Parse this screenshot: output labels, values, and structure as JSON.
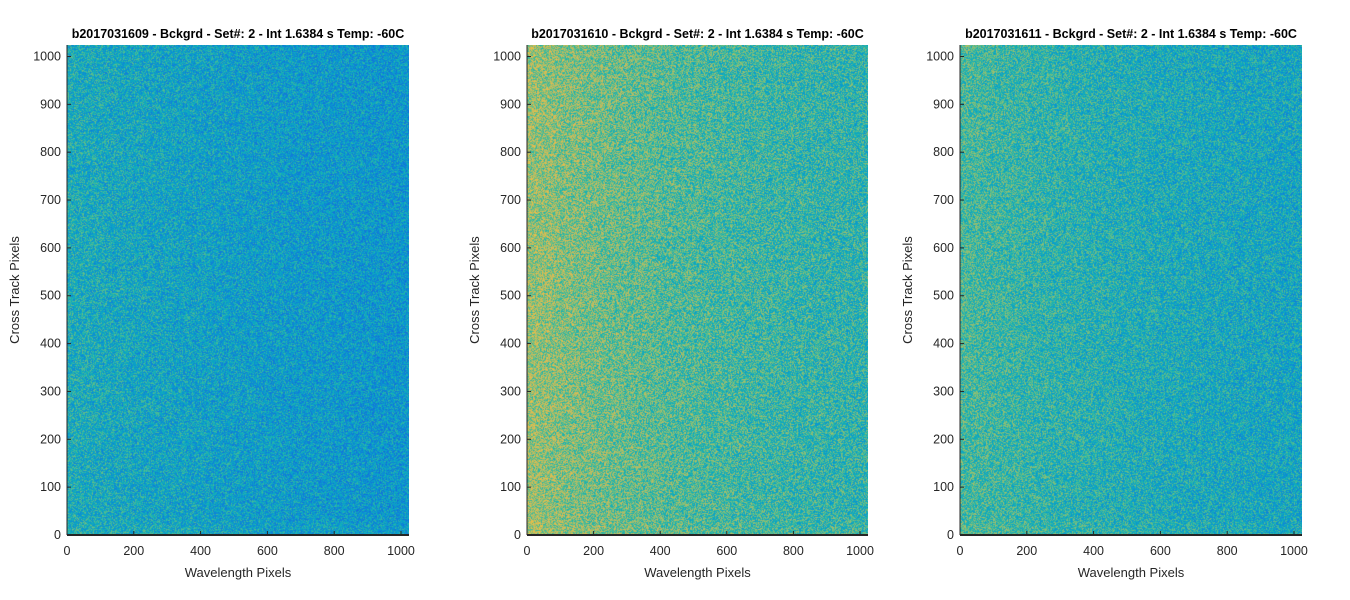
{
  "chart_data": [
    {
      "type": "heatmap",
      "title": "b2017031609 - Bckgrd - Set#: 2 - Int 1.6384 s Temp: -60C",
      "xlabel": "Wavelength Pixels",
      "ylabel": "Cross Track Pixels",
      "xlim": [
        0,
        1024
      ],
      "ylim": [
        0,
        1024
      ],
      "xticks": [
        0,
        200,
        400,
        600,
        800,
        1000
      ],
      "yticks": [
        0,
        100,
        200,
        300,
        400,
        500,
        600,
        700,
        800,
        900,
        1000
      ],
      "colormap": "parula",
      "noise": {
        "base": 0.42,
        "left_gradient": 0.06,
        "amplitude": 0.16
      },
      "grid": false
    },
    {
      "type": "heatmap",
      "title": "b2017031610 - Bckgrd - Set#: 2 - Int 1.6384 s Temp: -60C",
      "xlabel": "Wavelength Pixels",
      "ylabel": "Cross Track Pixels",
      "xlim": [
        0,
        1024
      ],
      "ylim": [
        0,
        1024
      ],
      "xticks": [
        0,
        200,
        400,
        600,
        800,
        1000
      ],
      "yticks": [
        0,
        100,
        200,
        300,
        400,
        500,
        600,
        700,
        800,
        900,
        1000
      ],
      "colormap": "parula",
      "noise": {
        "base": 0.55,
        "left_gradient": 0.14,
        "amplitude": 0.17
      },
      "grid": false
    },
    {
      "type": "heatmap",
      "title": "b2017031611 - Bckgrd - Set#: 2 - Int 1.6384 s Temp: -60C",
      "xlabel": "Wavelength Pixels",
      "ylabel": "Cross Track Pixels",
      "xlim": [
        0,
        1024
      ],
      "ylim": [
        0,
        1024
      ],
      "xticks": [
        0,
        200,
        400,
        600,
        800,
        1000
      ],
      "yticks": [
        0,
        100,
        200,
        300,
        400,
        500,
        600,
        700,
        800,
        900,
        1000
      ],
      "colormap": "parula",
      "noise": {
        "base": 0.48,
        "left_gradient": 0.09,
        "amplitude": 0.16
      },
      "grid": false
    }
  ]
}
